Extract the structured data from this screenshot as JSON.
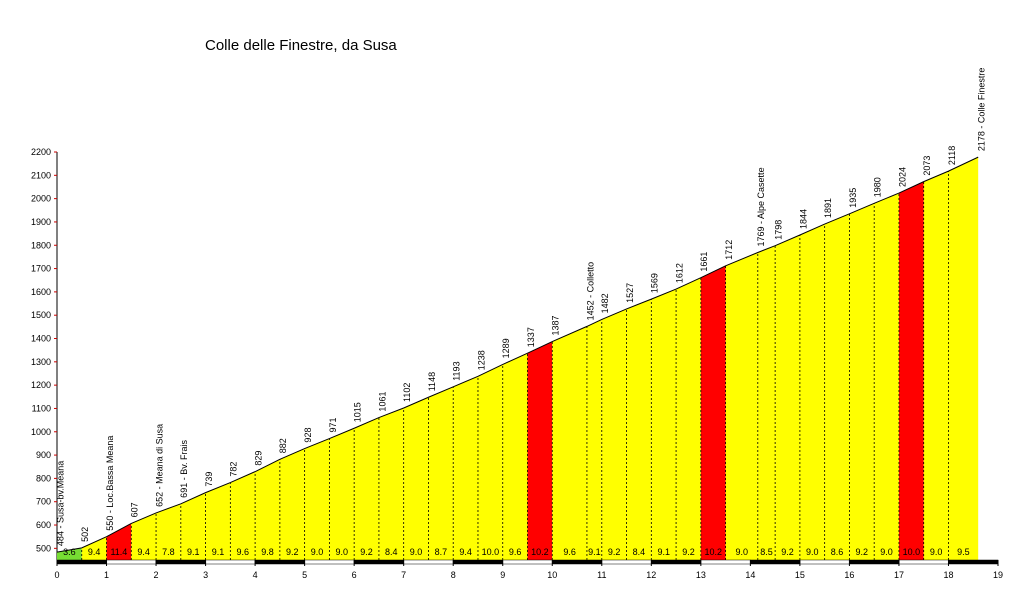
{
  "chart_data": {
    "type": "profile",
    "title": "Colle delle Finestre, da Susa",
    "x": [
      0,
      0.5,
      1,
      1.5,
      2,
      2.5,
      3,
      3.5,
      4,
      4.5,
      5,
      5.5,
      6,
      6.5,
      7,
      7.5,
      8,
      8.5,
      9,
      9.5,
      10,
      10.7,
      11,
      11.5,
      12,
      12.5,
      13,
      13.5,
      14.15,
      14.5,
      15,
      15.5,
      16,
      16.5,
      17,
      17.5,
      18,
      18.6
    ],
    "values": [
      484,
      502,
      550,
      607,
      652,
      691,
      739,
      782,
      829,
      882,
      928,
      971,
      1015,
      1061,
      1102,
      1148,
      1193,
      1238,
      1289,
      1337,
      1387,
      1452,
      1482,
      1527,
      1569,
      1612,
      1661,
      1712,
      1769,
      1798,
      1844,
      1891,
      1935,
      1980,
      2024,
      2073,
      2118,
      2178
    ],
    "value_labels": [
      "484 - Susa-bv.Meana",
      "502",
      "550 - Loc.Bassa Meana",
      "607",
      "652 - Meana di Susa",
      "691 - Bv. Frais",
      "739",
      "782",
      "829",
      "882",
      "928",
      "971",
      "1015",
      "1061",
      "1102",
      "1148",
      "1193",
      "1238",
      "1289",
      "1337",
      "1387",
      "1452 - Colletto",
      "1482",
      "1527",
      "1569",
      "1612",
      "1661",
      "1712",
      "1769 - Alpe Casette",
      "1798",
      "1844",
      "1891",
      "1935",
      "1980",
      "2024",
      "2073",
      "2118",
      "2178 - Colle Finestre"
    ],
    "gradients": [
      3.6,
      9.4,
      11.4,
      9.4,
      7.8,
      9.1,
      9.1,
      9.6,
      9.8,
      9.2,
      9.0,
      9.0,
      9.2,
      8.4,
      9.0,
      8.7,
      9.4,
      10.0,
      9.6,
      10.2,
      9.6,
      9.1,
      9.2,
      8.4,
      9.1,
      9.2,
      10.2,
      9.0,
      8.5,
      9.2,
      9.0,
      8.6,
      9.2,
      9.0,
      10.0,
      9.0,
      9.5
    ],
    "gradient_labels": [
      "3.6",
      "9.4",
      "11.4",
      "9.4",
      "7.8",
      "9.1",
      "9.1",
      "9.6",
      "9.8",
      "9.2",
      "9.0",
      "9.0",
      "9.2",
      "8.4",
      "9.0",
      "8.7",
      "9.4",
      "10.0",
      "9.6",
      "10.2",
      "9.6",
      "9.1",
      "9.2",
      "8.4",
      "9.1",
      "9.2",
      "10.2",
      "9.0",
      "8.5",
      "9.2",
      "9.0",
      "8.6",
      "9.2",
      "9.0",
      "10.0",
      "9.0",
      "9.5"
    ],
    "segment_colors": [
      "#77dd33",
      "#ffff00",
      "#ff0000",
      "#ffff00",
      "#ffff00",
      "#ffff00",
      "#ffff00",
      "#ffff00",
      "#ffff00",
      "#ffff00",
      "#ffff00",
      "#ffff00",
      "#ffff00",
      "#ffff00",
      "#ffff00",
      "#ffff00",
      "#ffff00",
      "#ffff00",
      "#ffff00",
      "#ff0000",
      "#ffff00",
      "#ffff00",
      "#ffff00",
      "#ffff00",
      "#ffff00",
      "#ffff00",
      "#ff0000",
      "#ffff00",
      "#ffff00",
      "#ffff00",
      "#ffff00",
      "#ffff00",
      "#ffff00",
      "#ffff00",
      "#ff0000",
      "#ffff00",
      "#ffff00"
    ],
    "xlim": [
      0,
      19
    ],
    "ylim": [
      450,
      2200
    ],
    "xticks": [
      0,
      1,
      2,
      3,
      4,
      5,
      6,
      7,
      8,
      9,
      10,
      11,
      12,
      13,
      14,
      15,
      16,
      17,
      18,
      19
    ],
    "yticks": [
      500,
      600,
      700,
      800,
      900,
      1000,
      1100,
      1200,
      1300,
      1400,
      1500,
      1600,
      1700,
      1800,
      1900,
      2000,
      2100,
      2200
    ]
  }
}
